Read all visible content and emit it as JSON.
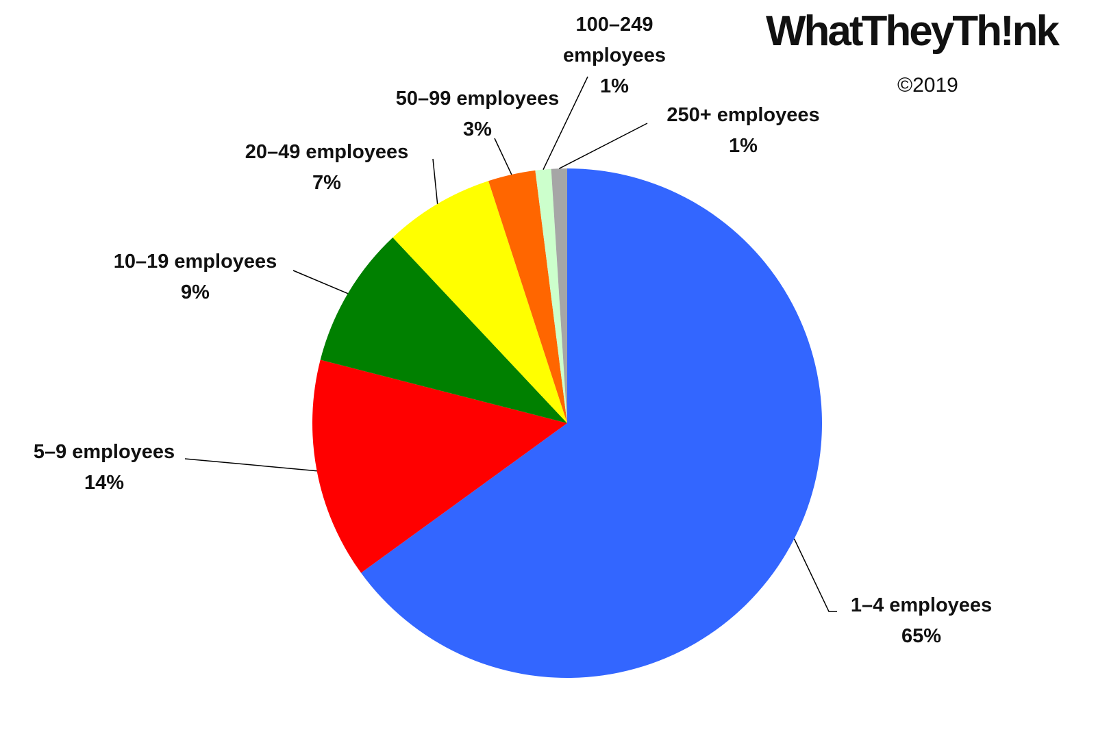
{
  "chart_data": {
    "type": "pie",
    "logo": "WhatTheyTh!nk",
    "copyright": "©2019",
    "categories": [
      "1–4 employees",
      "5–9 employees",
      "10–19 employees",
      "20–49 employees",
      "50–99 employees",
      "100–249 employees",
      "250+ employees"
    ],
    "values": [
      65,
      14,
      9,
      7,
      3,
      1,
      1
    ],
    "value_labels": [
      "65%",
      "14%",
      "9%",
      "7%",
      "3%",
      "1%",
      "1%"
    ],
    "colors": [
      "#3366ff",
      "#ff0000",
      "#008000",
      "#ffff00",
      "#ff6600",
      "#ccffcc",
      "#a6a6a6"
    ]
  }
}
